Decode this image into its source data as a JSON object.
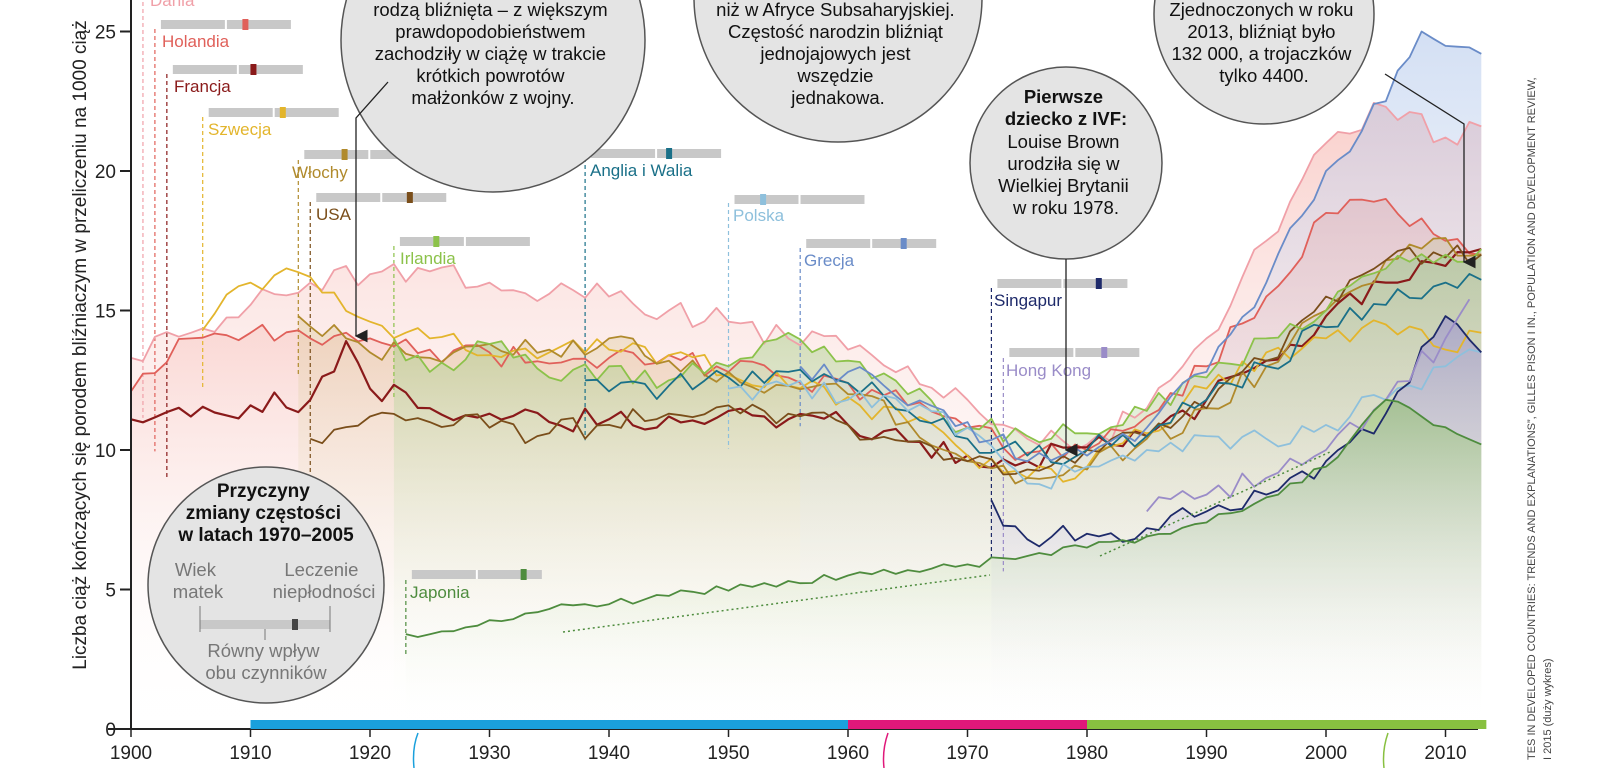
{
  "chart_data": {
    "type": "line",
    "ylabel": "Liczba ciąż kończących się porodem bliźniaczym w przeliczeniu na 1000 ciąż",
    "xlim": [
      1900,
      2013
    ],
    "ylim": [
      0,
      26
    ],
    "x_ticks": [
      "1900",
      "1910",
      "1920",
      "1930",
      "1940",
      "1950",
      "1960",
      "1970",
      "1980",
      "1990",
      "2000",
      "2010"
    ],
    "y_ticks": [
      "0",
      "5",
      "10",
      "15",
      "20",
      "25"
    ],
    "series": [
      {
        "name": "Dania",
        "color": "#f0a0a8",
        "start": 1901,
        "points": [
          [
            1900,
            13.3
          ],
          [
            1905,
            14.2
          ],
          [
            1910,
            15.2
          ],
          [
            1915,
            16.0
          ],
          [
            1920,
            16.3
          ],
          [
            1925,
            16.4
          ],
          [
            1930,
            16.0
          ],
          [
            1935,
            15.6
          ],
          [
            1940,
            15.5
          ],
          [
            1945,
            15.0
          ],
          [
            1950,
            14.6
          ],
          [
            1955,
            14.0
          ],
          [
            1960,
            13.6
          ],
          [
            1965,
            13.0
          ],
          [
            1970,
            11.8
          ],
          [
            1975,
            10.4
          ],
          [
            1980,
            10.2
          ],
          [
            1985,
            11.5
          ],
          [
            1990,
            14.0
          ],
          [
            1995,
            17.5
          ],
          [
            2000,
            21.0
          ],
          [
            2005,
            22.3
          ],
          [
            2010,
            21.2
          ],
          [
            2013,
            21.6
          ]
        ]
      },
      {
        "name": "Holandia",
        "color": "#e0605a",
        "start": 1902,
        "points": [
          [
            1900,
            12.1
          ],
          [
            1905,
            14.0
          ],
          [
            1910,
            14.2
          ],
          [
            1915,
            14.0
          ],
          [
            1920,
            14.0
          ],
          [
            1925,
            13.6
          ],
          [
            1930,
            13.5
          ],
          [
            1935,
            13.1
          ],
          [
            1940,
            13.3
          ],
          [
            1945,
            13.4
          ],
          [
            1950,
            12.8
          ],
          [
            1955,
            12.6
          ],
          [
            1960,
            12.4
          ],
          [
            1965,
            11.6
          ],
          [
            1970,
            10.8
          ],
          [
            1975,
            9.9
          ],
          [
            1980,
            10.0
          ],
          [
            1985,
            11.2
          ],
          [
            1990,
            13.0
          ],
          [
            1995,
            15.5
          ],
          [
            2000,
            18.5
          ],
          [
            2005,
            19.0
          ],
          [
            2010,
            17.5
          ],
          [
            2013,
            17.0
          ]
        ]
      },
      {
        "name": "Francja",
        "color": "#8a1a1a",
        "start": 1903,
        "points": [
          [
            1900,
            11.1
          ],
          [
            1905,
            11.2
          ],
          [
            1910,
            11.6
          ],
          [
            1915,
            11.8
          ],
          [
            1918,
            13.9
          ],
          [
            1920,
            12.2
          ],
          [
            1925,
            11.5
          ],
          [
            1930,
            11.3
          ],
          [
            1935,
            11.0
          ],
          [
            1940,
            11.1
          ],
          [
            1945,
            11.2
          ],
          [
            1950,
            11.4
          ],
          [
            1955,
            11.1
          ],
          [
            1960,
            10.9
          ],
          [
            1965,
            10.3
          ],
          [
            1970,
            9.8
          ],
          [
            1975,
            9.6
          ],
          [
            1980,
            10.1
          ],
          [
            1985,
            10.5
          ],
          [
            1990,
            11.8
          ],
          [
            1995,
            13.2
          ],
          [
            2000,
            14.8
          ],
          [
            2005,
            16.0
          ],
          [
            2010,
            16.6
          ],
          [
            2013,
            17.2
          ]
        ]
      },
      {
        "name": "Szwecja",
        "color": "#e3b52c",
        "start": 1906,
        "points": [
          [
            1906,
            14.3
          ],
          [
            1910,
            16.0
          ],
          [
            1915,
            16.2
          ],
          [
            1920,
            14.6
          ],
          [
            1925,
            14.0
          ],
          [
            1930,
            13.4
          ],
          [
            1935,
            13.5
          ],
          [
            1940,
            13.6
          ],
          [
            1945,
            13.4
          ],
          [
            1950,
            12.7
          ],
          [
            1955,
            12.3
          ],
          [
            1960,
            11.9
          ],
          [
            1965,
            11.0
          ],
          [
            1970,
            9.8
          ],
          [
            1975,
            9.0
          ],
          [
            1980,
            9.4
          ],
          [
            1985,
            10.6
          ],
          [
            1990,
            12.2
          ],
          [
            1995,
            13.5
          ],
          [
            2000,
            14.0
          ],
          [
            2005,
            14.5
          ],
          [
            2010,
            13.6
          ],
          [
            2013,
            14.2
          ]
        ]
      },
      {
        "name": "Włochy",
        "color": "#b08a2c",
        "start": 1914,
        "points": [
          [
            1914,
            14.8
          ],
          [
            1918,
            14.0
          ],
          [
            1920,
            13.5
          ],
          [
            1925,
            13.3
          ],
          [
            1930,
            13.8
          ],
          [
            1935,
            13.6
          ],
          [
            1940,
            14.0
          ],
          [
            1945,
            13.2
          ],
          [
            1950,
            12.8
          ],
          [
            1955,
            12.3
          ],
          [
            1960,
            12.0
          ],
          [
            1965,
            11.0
          ],
          [
            1970,
            9.6
          ],
          [
            1975,
            9.0
          ],
          [
            1980,
            9.3
          ],
          [
            1985,
            10.4
          ],
          [
            1990,
            11.5
          ],
          [
            1995,
            13.0
          ],
          [
            2000,
            15.0
          ],
          [
            2005,
            16.8
          ],
          [
            2010,
            17.6
          ],
          [
            2013,
            17.0
          ]
        ]
      },
      {
        "name": "USA",
        "color": "#7a4e1a",
        "start": 1915,
        "points": [
          [
            1915,
            10.4
          ],
          [
            1920,
            11.2
          ],
          [
            1925,
            11.0
          ],
          [
            1930,
            10.8
          ],
          [
            1935,
            10.6
          ],
          [
            1940,
            10.9
          ],
          [
            1945,
            11.3
          ],
          [
            1950,
            11.6
          ],
          [
            1955,
            11.3
          ],
          [
            1960,
            10.9
          ],
          [
            1965,
            10.3
          ],
          [
            1970,
            9.6
          ],
          [
            1975,
            9.3
          ],
          [
            1980,
            10.0
          ],
          [
            1985,
            10.5
          ],
          [
            1990,
            11.5
          ],
          [
            1995,
            13.2
          ],
          [
            2000,
            15.5
          ],
          [
            2005,
            16.8
          ],
          [
            2010,
            16.9
          ],
          [
            2013,
            17.0
          ]
        ]
      },
      {
        "name": "Irlandia",
        "color": "#8cc24a",
        "start": 1922,
        "points": [
          [
            1922,
            14.0
          ],
          [
            1925,
            12.8
          ],
          [
            1930,
            13.8
          ],
          [
            1935,
            12.6
          ],
          [
            1940,
            13.0
          ],
          [
            1945,
            12.5
          ],
          [
            1950,
            13.0
          ],
          [
            1955,
            14.2
          ],
          [
            1960,
            13.2
          ],
          [
            1965,
            12.0
          ],
          [
            1970,
            10.8
          ],
          [
            1975,
            10.5
          ],
          [
            1980,
            10.6
          ],
          [
            1985,
            11.4
          ],
          [
            1990,
            12.6
          ],
          [
            1995,
            14.0
          ],
          [
            2000,
            15.0
          ],
          [
            2005,
            16.5
          ],
          [
            2010,
            17.0
          ],
          [
            2013,
            17.2
          ]
        ]
      },
      {
        "name": "Anglia i Walia",
        "color": "#1a7088",
        "start": 1938,
        "points": [
          [
            1938,
            12.5
          ],
          [
            1940,
            12.1
          ],
          [
            1945,
            12.3
          ],
          [
            1950,
            12.6
          ],
          [
            1955,
            12.8
          ],
          [
            1960,
            12.4
          ],
          [
            1965,
            11.4
          ],
          [
            1970,
            10.4
          ],
          [
            1975,
            9.8
          ],
          [
            1980,
            10.0
          ],
          [
            1985,
            10.5
          ],
          [
            1990,
            11.8
          ],
          [
            1995,
            13.0
          ],
          [
            2000,
            14.4
          ],
          [
            2005,
            15.2
          ],
          [
            2010,
            16.0
          ],
          [
            2013,
            16.1
          ]
        ]
      },
      {
        "name": "Polska",
        "color": "#8ec0dc",
        "start": 1950,
        "points": [
          [
            1950,
            12.2
          ],
          [
            1955,
            12.3
          ],
          [
            1960,
            11.8
          ],
          [
            1965,
            11.4
          ],
          [
            1970,
            10.8
          ],
          [
            1975,
            8.8
          ],
          [
            1980,
            9.4
          ],
          [
            1985,
            10.0
          ],
          [
            1990,
            10.5
          ],
          [
            1995,
            10.4
          ],
          [
            2000,
            10.9
          ],
          [
            2005,
            11.8
          ],
          [
            2010,
            13.0
          ],
          [
            2013,
            13.5
          ]
        ]
      },
      {
        "name": "Grecja",
        "color": "#6a8cc8",
        "start": 1956,
        "points": [
          [
            1956,
            13.0
          ],
          [
            1960,
            12.8
          ],
          [
            1965,
            11.6
          ],
          [
            1970,
            11.0
          ],
          [
            1975,
            9.6
          ],
          [
            1980,
            9.8
          ],
          [
            1985,
            10.8
          ],
          [
            1990,
            12.8
          ],
          [
            1995,
            16.0
          ],
          [
            2000,
            20.0
          ],
          [
            2005,
            22.5
          ],
          [
            2008,
            25.0
          ],
          [
            2013,
            24.2
          ]
        ]
      },
      {
        "name": "Singapur",
        "color": "#1e2a6a",
        "start": 1972,
        "points": [
          [
            1972,
            8.2
          ],
          [
            1975,
            6.8
          ],
          [
            1980,
            7.0
          ],
          [
            1985,
            7.2
          ],
          [
            1990,
            7.8
          ],
          [
            1995,
            8.4
          ],
          [
            2000,
            9.6
          ],
          [
            2005,
            11.3
          ],
          [
            2010,
            14.8
          ],
          [
            2013,
            13.5
          ]
        ]
      },
      {
        "name": "Hong Kong",
        "color": "#9a8cc8",
        "start": 1973,
        "points": [
          [
            1985,
            7.8
          ],
          [
            1990,
            8.4
          ],
          [
            1995,
            9.0
          ],
          [
            2000,
            10.0
          ],
          [
            2005,
            11.8
          ],
          [
            2010,
            14.0
          ],
          [
            2012,
            15.4
          ]
        ]
      },
      {
        "name": "Japonia",
        "color": "#4e8c3e",
        "start": 1923,
        "points": [
          [
            1923,
            3.4
          ],
          [
            1926,
            3.5
          ],
          [
            1930,
            3.9
          ],
          [
            1935,
            4.3
          ],
          [
            1960,
            5.5
          ],
          [
            1970,
            5.9
          ],
          [
            1975,
            6.2
          ],
          [
            1980,
            6.5
          ],
          [
            1985,
            6.9
          ],
          [
            1990,
            7.4
          ],
          [
            1995,
            8.3
          ],
          [
            2000,
            9.4
          ],
          [
            2005,
            11.8
          ],
          [
            2008,
            11.2
          ],
          [
            2013,
            10.2
          ]
        ]
      }
    ],
    "bottom_bars": [
      {
        "from": 1910,
        "to": 1960,
        "color": "#1aa0dc"
      },
      {
        "from": 1960,
        "to": 1980,
        "color": "#e0187a"
      },
      {
        "from": 1980,
        "to": 2013,
        "color": "#88c040"
      }
    ]
  },
  "labels": {
    "dania": "Dania",
    "holandia": "Holandia",
    "francja": "Francja",
    "szwecja": "Szwecja",
    "wlochy": "Włochy",
    "usa": "USA",
    "irlandia": "Irlandia",
    "anglia": "Anglia i Walia",
    "polska": "Polska",
    "grecja": "Grecja",
    "singapur": "Singapur",
    "hongkong": "Hong Kong",
    "japonia": "Japonia"
  },
  "bubbles": {
    "war": [
      "rodzą bliźnięta – z większym",
      "prawdopodobieństwem",
      "zachodziły w ciążę w trakcie",
      "krótkich powrotów",
      "małżonków z wojny."
    ],
    "africa": [
      "niż w Afryce Subsaharyjskiej.",
      "Częstość narodzin bliźniąt",
      "jednojajowych jest",
      "wszędzie",
      "jednakowa."
    ],
    "usa_stats": [
      "Zjednoczonych w roku",
      "2013, bliźniąt było",
      "132 000, a trojaczków",
      "tylko 4400."
    ],
    "ivf_title": [
      "Pierwsze",
      "dziecko z IVF:"
    ],
    "ivf_body": [
      "Louise Brown",
      "urodziła się w",
      "Wielkiej Brytanii",
      "w roku 1978."
    ],
    "causes_title": [
      "Przyczyny",
      "zmiany częstości",
      "w latach 1970–2005"
    ],
    "causes_left": [
      "Wiek",
      "matek"
    ],
    "causes_right": [
      "Leczenie",
      "niepłodności"
    ],
    "causes_bottom": [
      "Równy wpływ",
      "obu czynników"
    ]
  },
  "source": {
    "line1": "TES IN DEVELOPED COUNTRIES: TRENDS AND EXPLANATIONS”, GILLES PISON I IN., POPULATION AND DEVELOPMENT REVIEW,",
    "line2": "I 2015 (duży wykres)"
  }
}
